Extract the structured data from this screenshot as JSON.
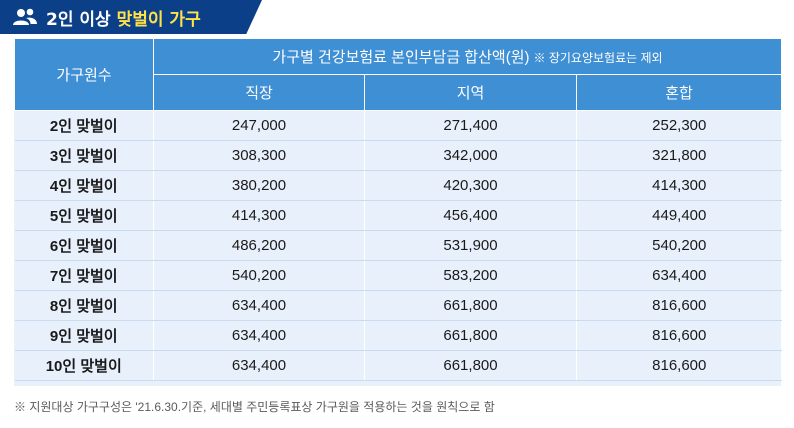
{
  "title": {
    "prefix": "2인 이상",
    "highlight": "맞벌이 가구",
    "icon": "users-icon"
  },
  "table": {
    "corner_header": "가구원수",
    "group_header": "가구별 건강보험료 본인부담금 합산액(원)",
    "group_note": "※ 장기요양보험료는 제외",
    "columns": [
      "직장",
      "지역",
      "혼합"
    ],
    "rows": [
      {
        "label": "2인 맞벌이",
        "values": [
          "247,000",
          "271,400",
          "252,300"
        ]
      },
      {
        "label": "3인 맞벌이",
        "values": [
          "308,300",
          "342,000",
          "321,800"
        ]
      },
      {
        "label": "4인 맞벌이",
        "values": [
          "380,200",
          "420,300",
          "414,300"
        ]
      },
      {
        "label": "5인 맞벌이",
        "values": [
          "414,300",
          "456,400",
          "449,400"
        ]
      },
      {
        "label": "6인 맞벌이",
        "values": [
          "486,200",
          "531,900",
          "540,200"
        ]
      },
      {
        "label": "7인 맞벌이",
        "values": [
          "540,200",
          "583,200",
          "634,400"
        ]
      },
      {
        "label": "8인 맞벌이",
        "values": [
          "634,400",
          "661,800",
          "816,600"
        ]
      },
      {
        "label": "9인 맞벌이",
        "values": [
          "634,400",
          "661,800",
          "816,600"
        ]
      },
      {
        "label": "10인 맞벌이",
        "values": [
          "634,400",
          "661,800",
          "816,600"
        ]
      }
    ]
  },
  "footnote": "※ 지원대상 가구구성은 '21.6.30.기준, 세대별 주민등록표상 가구원을 적용하는 것을 원칙으로 함",
  "colors": {
    "title_bg": "#0b3f88",
    "title_highlight": "#ffe14a",
    "header_bg": "#3f8fd5",
    "body_bg": "#e8f1fb"
  }
}
